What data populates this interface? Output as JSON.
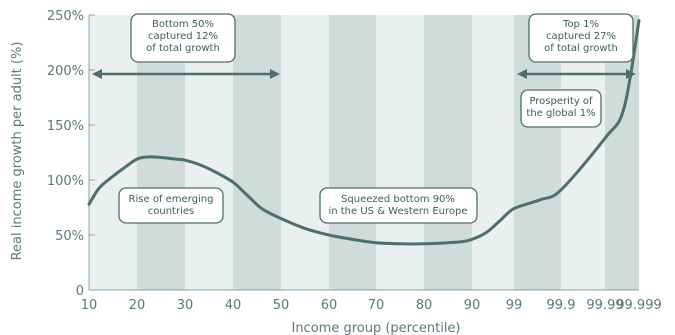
{
  "chart_data": {
    "type": "line",
    "title": "",
    "xlabel": "Income group (percentile)",
    "ylabel": "Real income growth per adult (%)",
    "x_tick_labels": [
      "10",
      "20",
      "30",
      "40",
      "50",
      "60",
      "70",
      "80",
      "90",
      "99",
      "99.9",
      "99.99",
      "99.999"
    ],
    "y_tick_labels": [
      "0",
      "50%",
      "100%",
      "150%",
      "200%",
      "250%"
    ],
    "ylim": [
      0,
      250
    ],
    "grid": false,
    "colors": {
      "line": "#4f6f6b",
      "band_dark": "#cfdcd9",
      "band_light": "#e9f0ef",
      "axis": "#8aa5a2",
      "annotation_border": "#4f6f6b"
    },
    "series": [
      {
        "x": [
          10,
          12,
          14,
          17,
          20,
          22.5,
          25,
          28,
          30,
          33,
          36,
          40,
          43,
          46,
          50,
          55,
          60,
          65,
          70,
          75,
          80,
          85,
          88,
          90,
          93,
          96,
          99,
          99.5,
          99.9,
          99.99,
          99.995,
          99.999
        ],
        "values": [
          78,
          92,
          100,
          110,
          119,
          121,
          120.5,
          119,
          118,
          114,
          108,
          98,
          86,
          74,
          65,
          56,
          50,
          46,
          43,
          42,
          42,
          43,
          44,
          46,
          52,
          63,
          74,
          82,
          91,
          138,
          165,
          245
        ]
      }
    ],
    "annotations": [
      {
        "lines": [
          "Bottom 50%",
          "captured 12%",
          "of total growth"
        ]
      },
      {
        "lines": [
          "Top 1%",
          "captured 27%",
          "of total growth"
        ]
      },
      {
        "lines": [
          "Prosperity of",
          "the global 1%"
        ]
      },
      {
        "lines": [
          "Rise of emerging",
          "countries"
        ]
      },
      {
        "lines": [
          "Squeezed bottom 90%",
          "in the US & Western Europe"
        ]
      }
    ]
  }
}
